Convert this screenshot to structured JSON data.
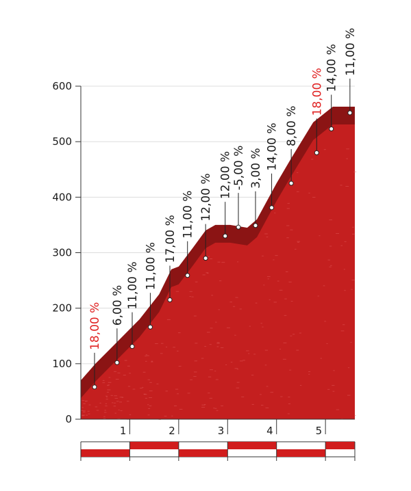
{
  "chart_data": {
    "type": "area",
    "title": "",
    "xlabel": "",
    "ylabel": "",
    "xlim": [
      0,
      5.6
    ],
    "ylim": [
      0,
      600
    ],
    "x_ticks": [
      1,
      2,
      3,
      4,
      5
    ],
    "y_ticks": [
      0,
      100,
      200,
      300,
      400,
      500,
      600
    ],
    "grid": "horizontal",
    "colors": {
      "profile": "#c41f1f",
      "upper_band": "#8b1414",
      "bar": "#d11d1d",
      "steep": "#e02020"
    },
    "profile": [
      {
        "x": 0.0,
        "y": 70
      },
      {
        "x": 0.3,
        "y": 100
      },
      {
        "x": 0.75,
        "y": 140
      },
      {
        "x": 1.2,
        "y": 180
      },
      {
        "x": 1.6,
        "y": 225
      },
      {
        "x": 1.85,
        "y": 270
      },
      {
        "x": 2.0,
        "y": 275
      },
      {
        "x": 2.3,
        "y": 310
      },
      {
        "x": 2.55,
        "y": 340
      },
      {
        "x": 2.75,
        "y": 350
      },
      {
        "x": 3.05,
        "y": 350
      },
      {
        "x": 3.4,
        "y": 345
      },
      {
        "x": 3.6,
        "y": 360
      },
      {
        "x": 4.0,
        "y": 425
      },
      {
        "x": 4.3,
        "y": 470
      },
      {
        "x": 4.75,
        "y": 535
      },
      {
        "x": 5.15,
        "y": 563
      },
      {
        "x": 5.6,
        "y": 563
      }
    ],
    "gradients": [
      {
        "x": 0.28,
        "y": 58,
        "label": "18,00 %",
        "steep": true
      },
      {
        "x": 0.74,
        "y": 102,
        "label": "6,00 %",
        "steep": false
      },
      {
        "x": 1.05,
        "y": 131,
        "label": "11,00 %",
        "steep": false
      },
      {
        "x": 1.42,
        "y": 166,
        "label": "11,00 %",
        "steep": false
      },
      {
        "x": 1.82,
        "y": 215,
        "label": "17,00 %",
        "steep": false
      },
      {
        "x": 2.18,
        "y": 259,
        "label": "11,00 %",
        "steep": false
      },
      {
        "x": 2.55,
        "y": 290,
        "label": "12,00 %",
        "steep": false
      },
      {
        "x": 2.95,
        "y": 330,
        "label": "12,00 %",
        "steep": false
      },
      {
        "x": 3.22,
        "y": 346,
        "label": "-5,00 %",
        "steep": false
      },
      {
        "x": 3.57,
        "y": 349,
        "label": "3,00 %",
        "steep": false
      },
      {
        "x": 3.9,
        "y": 381,
        "label": "14,00 %",
        "steep": false
      },
      {
        "x": 4.3,
        "y": 425,
        "label": "8,00 %",
        "steep": false
      },
      {
        "x": 4.82,
        "y": 480,
        "label": "18,00 %",
        "steep": true
      },
      {
        "x": 5.12,
        "y": 523,
        "label": "14,00 %",
        "steep": false
      },
      {
        "x": 5.5,
        "y": 552,
        "label": "11,00 %",
        "steep": false
      }
    ]
  }
}
